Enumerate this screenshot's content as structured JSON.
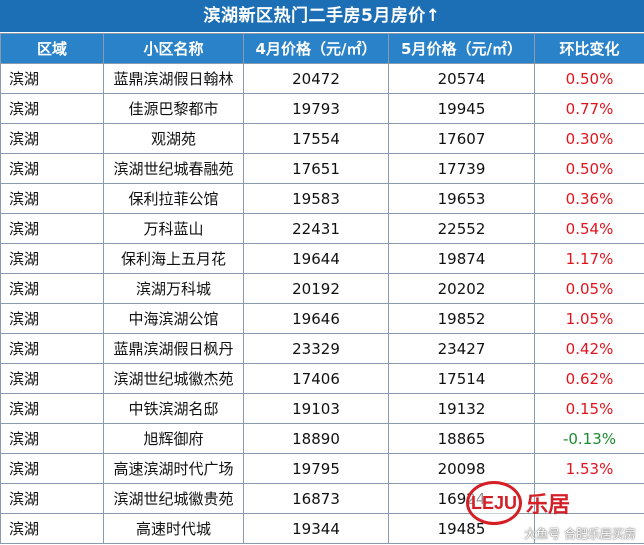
{
  "title": "滨湖新区热门二手房5月房价↑",
  "columns": [
    "区域",
    "小区名称",
    "4月价格（元/㎡）",
    "5月价格（元/㎡）",
    "环比变化"
  ],
  "rows": [
    {
      "district": "滨湖",
      "name": "蓝鼎滨湖假日翰林",
      "april": "20472",
      "may": "20574",
      "change": "0.50%",
      "dir": "up"
    },
    {
      "district": "滨湖",
      "name": "佳源巴黎都市",
      "april": "19793",
      "may": "19945",
      "change": "0.77%",
      "dir": "up"
    },
    {
      "district": "滨湖",
      "name": "观湖苑",
      "april": "17554",
      "may": "17607",
      "change": "0.30%",
      "dir": "up"
    },
    {
      "district": "滨湖",
      "name": "滨湖世纪城春融苑",
      "april": "17651",
      "may": "17739",
      "change": "0.50%",
      "dir": "up"
    },
    {
      "district": "滨湖",
      "name": "保利拉菲公馆",
      "april": "19583",
      "may": "19653",
      "change": "0.36%",
      "dir": "up"
    },
    {
      "district": "滨湖",
      "name": "万科蓝山",
      "april": "22431",
      "may": "22552",
      "change": "0.54%",
      "dir": "up"
    },
    {
      "district": "滨湖",
      "name": "保利海上五月花",
      "april": "19644",
      "may": "19874",
      "change": "1.17%",
      "dir": "up"
    },
    {
      "district": "滨湖",
      "name": "滨湖万科城",
      "april": "20192",
      "may": "20202",
      "change": "0.05%",
      "dir": "up"
    },
    {
      "district": "滨湖",
      "name": "中海滨湖公馆",
      "april": "19646",
      "may": "19852",
      "change": "1.05%",
      "dir": "up"
    },
    {
      "district": "滨湖",
      "name": "蓝鼎滨湖假日枫丹",
      "april": "23329",
      "may": "23427",
      "change": "0.42%",
      "dir": "up"
    },
    {
      "district": "滨湖",
      "name": "滨湖世纪城徽杰苑",
      "april": "17406",
      "may": "17514",
      "change": "0.62%",
      "dir": "up"
    },
    {
      "district": "滨湖",
      "name": "中铁滨湖名邸",
      "april": "19103",
      "may": "19132",
      "change": "0.15%",
      "dir": "up"
    },
    {
      "district": "滨湖",
      "name": "旭辉御府",
      "april": "18890",
      "may": "18865",
      "change": "-0.13%",
      "dir": "down"
    },
    {
      "district": "滨湖",
      "name": "高速滨湖时代广场",
      "april": "19795",
      "may": "20098",
      "change": "1.53%",
      "dir": "up"
    },
    {
      "district": "滨湖",
      "name": "滨湖世纪城徽贵苑",
      "april": "16873",
      "may": "16924",
      "change": "",
      "dir": "up"
    },
    {
      "district": "滨湖",
      "name": "高速时代城",
      "april": "19344",
      "may": "19485",
      "change": "",
      "dir": "up"
    }
  ],
  "watermark": {
    "logo_mark": "LEJU",
    "logo_text": "乐居",
    "caption": "大鱼号 合肥乐居买房"
  },
  "colors": {
    "title_bg": "#1d6fb5",
    "header_bg": "#2a82c8",
    "increase": "#e0141e",
    "decrease": "#1b8a2e",
    "brand": "#d51f26"
  }
}
